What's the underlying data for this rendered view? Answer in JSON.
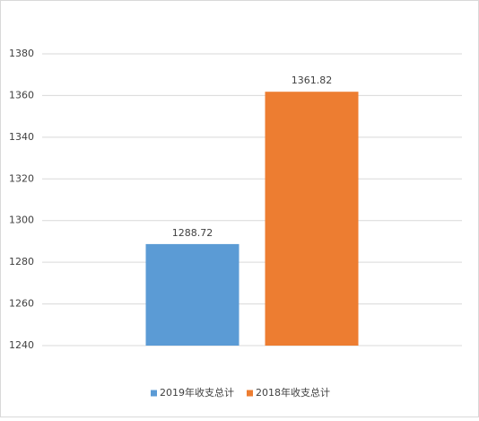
{
  "chart_data": {
    "type": "bar",
    "categories": [
      null
    ],
    "series": [
      {
        "name": "2019年收支总计",
        "color": "#5b9bd5",
        "values": [
          1288.72
        ]
      },
      {
        "name": "2018年收支总计",
        "color": "#ed7d31",
        "values": [
          1361.82
        ]
      }
    ],
    "ylim": [
      1240,
      1380
    ],
    "yticks": [
      1240,
      1260,
      1280,
      1300,
      1320,
      1340,
      1360,
      1380
    ],
    "grid": true,
    "legend": "bottom",
    "data_labels": true
  }
}
